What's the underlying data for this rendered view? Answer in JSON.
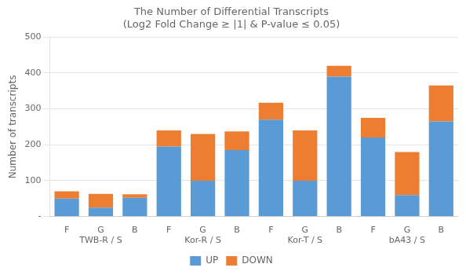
{
  "chart_data": {
    "type": "bar",
    "title": [
      "The Number of Differential Transcripts",
      "(Log2 Fold Change ≥ |1| & P-value ≤ 0.05)"
    ],
    "y_label": "Number of transcripts",
    "categories": [
      "F",
      "G",
      "B",
      "F",
      "G",
      "B",
      "F",
      "G",
      "B",
      "F",
      "G",
      "B"
    ],
    "groups": [
      "TWB-R / S",
      "Kor-R / S",
      "Kor-T / S",
      "bA43 / S"
    ],
    "series": [
      {
        "name": "UP",
        "color": "#5B9BD5",
        "values": [
          50,
          25,
          52,
          195,
          100,
          185,
          270,
          100,
          390,
          220,
          60,
          265
        ]
      },
      {
        "name": "DOWN",
        "color": "#ED7D31",
        "values": [
          20,
          38,
          10,
          45,
          130,
          52,
          47,
          140,
          30,
          55,
          120,
          100
        ]
      }
    ],
    "stacked": true,
    "ylim": [
      0,
      500
    ],
    "yticks": [
      {
        "value": 0,
        "label": "-"
      },
      100,
      200,
      300,
      400,
      500
    ],
    "grid": true,
    "legend": "bottom"
  }
}
